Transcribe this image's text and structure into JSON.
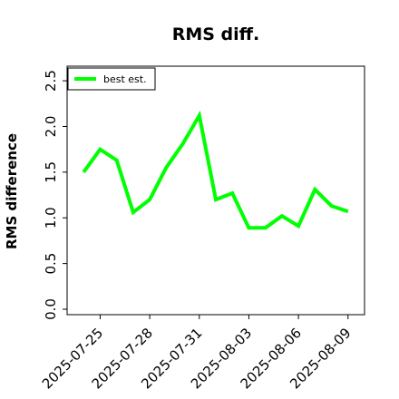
{
  "chart_data": {
    "type": "line",
    "title": "RMS diff.",
    "xlabel": "",
    "ylabel": "RMS difference",
    "xlim": [
      "2025-07-23",
      "2025-08-10"
    ],
    "ylim": [
      0,
      2.6
    ],
    "yticks": [
      0.0,
      0.5,
      1.0,
      1.5,
      2.0,
      2.5
    ],
    "ytick_labels": [
      "0.0",
      "0.5",
      "1.0",
      "1.5",
      "2.0",
      "2.5"
    ],
    "xticks": [
      "2025-07-25",
      "2025-07-28",
      "2025-07-31",
      "2025-08-03",
      "2025-08-06",
      "2025-08-09"
    ],
    "xtick_labels": [
      "2025-07-25",
      "2025-07-28",
      "2025-07-31",
      "2025-08-03",
      "2025-08-06",
      "2025-08-09"
    ],
    "grid": false,
    "legend": {
      "position": "top-left",
      "entries": [
        "best est."
      ]
    },
    "series": [
      {
        "name": "best est.",
        "color": "#00ff00",
        "x": [
          "2025-07-24",
          "2025-07-25",
          "2025-07-26",
          "2025-07-27",
          "2025-07-28",
          "2025-07-29",
          "2025-07-30",
          "2025-07-31",
          "2025-08-01",
          "2025-08-02",
          "2025-08-03",
          "2025-08-04",
          "2025-08-05",
          "2025-08-06",
          "2025-08-07",
          "2025-08-08",
          "2025-08-09"
        ],
        "values": [
          1.5,
          1.75,
          1.63,
          1.06,
          1.2,
          1.55,
          1.81,
          2.12,
          1.2,
          1.27,
          0.89,
          0.89,
          1.02,
          0.91,
          1.31,
          1.13,
          1.07
        ]
      }
    ]
  }
}
